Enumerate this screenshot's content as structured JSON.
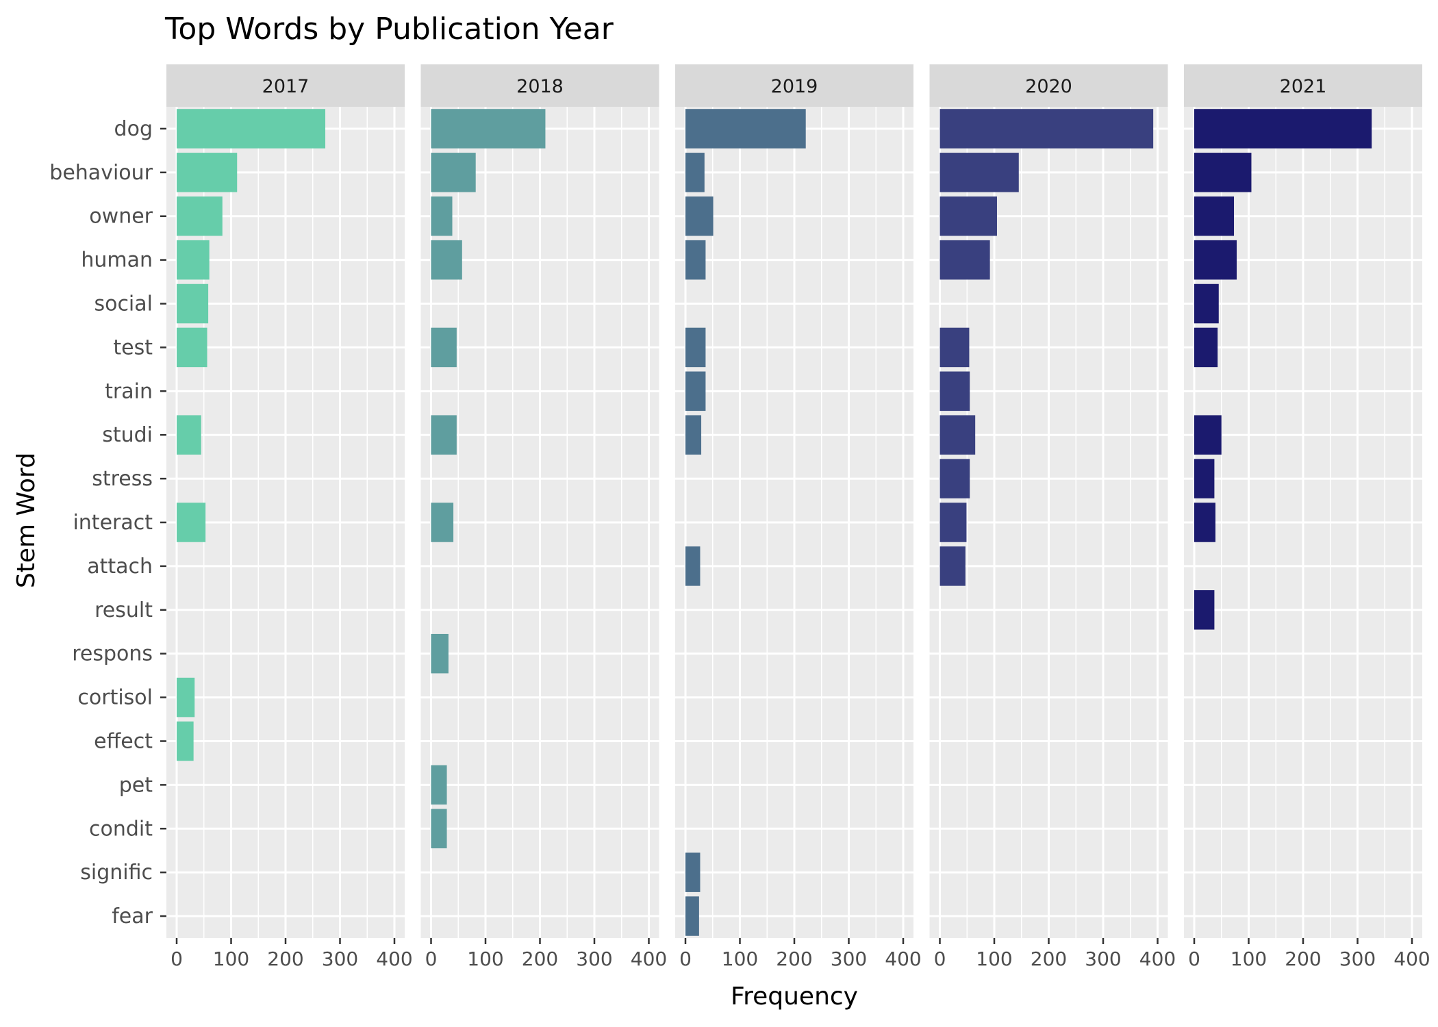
{
  "chart_data": {
    "type": "bar",
    "orientation": "horizontal",
    "title": "Top Words by Publication Year",
    "xlabel": "Frequency",
    "ylabel": "Stem Word",
    "xlim": [
      0,
      400
    ],
    "x_ticks": [
      0,
      100,
      200,
      300,
      400
    ],
    "grid": true,
    "legend": "none",
    "categories": [
      "dog",
      "behaviour",
      "owner",
      "human",
      "social",
      "test",
      "train",
      "studi",
      "stress",
      "interact",
      "attach",
      "result",
      "respons",
      "cortisol",
      "effect",
      "pet",
      "condit",
      "signific",
      "fear"
    ],
    "series": [
      {
        "name": "2017",
        "color": "#66CDAA",
        "values": [
          273,
          111,
          84,
          60,
          58,
          56,
          null,
          45,
          null,
          53,
          null,
          null,
          null,
          33,
          31,
          null,
          null,
          null,
          null
        ]
      },
      {
        "name": "2018",
        "color": "#5F9E9F",
        "values": [
          210,
          82,
          39,
          57,
          null,
          47,
          null,
          47,
          null,
          41,
          null,
          null,
          32,
          null,
          null,
          29,
          29,
          null,
          null
        ]
      },
      {
        "name": "2019",
        "color": "#4C6F8C",
        "values": [
          221,
          35,
          51,
          37,
          null,
          37,
          37,
          29,
          null,
          null,
          27,
          null,
          null,
          null,
          null,
          null,
          null,
          27,
          25
        ]
      },
      {
        "name": "2020",
        "color": "#39407F",
        "values": [
          392,
          145,
          105,
          92,
          null,
          54,
          55,
          65,
          55,
          49,
          47,
          null,
          null,
          null,
          null,
          null,
          null,
          null,
          null
        ]
      },
      {
        "name": "2021",
        "color": "#1B1A6E",
        "values": [
          326,
          105,
          73,
          78,
          45,
          43,
          null,
          50,
          37,
          39,
          null,
          37,
          null,
          null,
          null,
          null,
          null,
          null,
          null
        ]
      }
    ]
  }
}
